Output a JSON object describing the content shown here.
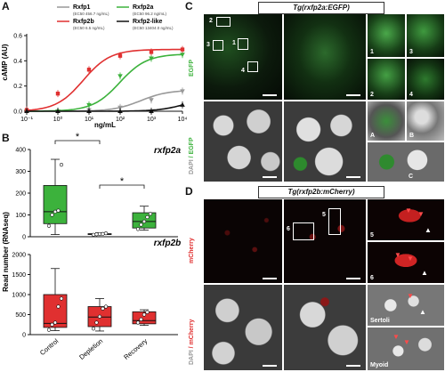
{
  "panels": {
    "A": "A",
    "B": "B",
    "C": "C",
    "D": "D"
  },
  "panelA": {
    "ylabel": "cAMP (AU)",
    "xlabel": "ng/mL",
    "legend": [
      {
        "name": "Rxfp1",
        "ec50": "(EC50 456.7 ng/mL)",
        "color": "#999999"
      },
      {
        "name": "Rxfp2a",
        "ec50": "(EC50 96.2 ng/mL)",
        "color": "#3cb23c"
      },
      {
        "name": "Rxfp2b",
        "ec50": "(EC50 6.5 ng/mL)",
        "color": "#e03030"
      },
      {
        "name": "Rxfp2-like",
        "ec50": "(EC50 13404.0 ng/mL)",
        "color": "#111111"
      }
    ]
  },
  "panelB": {
    "ylabel": "Read number (RNAseq)",
    "gene1": "rxfp2a",
    "gene2": "rxfp2b",
    "star": "*",
    "categories": [
      "Control",
      "Depletion",
      "Recovery"
    ]
  },
  "panelC": {
    "title": "Tg(rxfp2a:EGFP)",
    "row1_label": "EGFP",
    "row2_label_a": "DAPI",
    "row2_label_b": " / EGFP",
    "insets": [
      "1",
      "2",
      "3",
      "4"
    ],
    "boxes": [
      "2",
      "3",
      "1",
      "4"
    ],
    "sub": [
      "A",
      "B",
      "C"
    ]
  },
  "panelD": {
    "title": "Tg(rxfp2b:mCherry)",
    "row1_label": "mCherry",
    "row2_label_a": "DAPI",
    "row2_label_b": " / mCherry",
    "insets": [
      "5",
      "6"
    ],
    "boxes": [
      "6",
      "5"
    ],
    "cell_labels": [
      "Sertoli",
      "Myoid"
    ]
  },
  "chart_data": [
    {
      "type": "line",
      "title": "",
      "xlabel": "ng/mL",
      "ylabel": "cAMP (AU)",
      "xscale": "log",
      "xlim": [
        0.1,
        10000
      ],
      "ylim": [
        0,
        0.6
      ],
      "x_ticks": [
        "10⁻¹",
        "10⁰",
        "10¹",
        "10²",
        "10³",
        "10⁴"
      ],
      "y_ticks": [
        "0.0",
        "0.2",
        "0.4",
        "0.6"
      ],
      "legend_position": "top",
      "series": [
        {
          "name": "Rxfp1",
          "ec50": 456.7,
          "x": [
            0.1,
            1,
            10,
            100,
            1000,
            10000
          ],
          "y": [
            0.0,
            0.0,
            0.01,
            0.03,
            0.09,
            0.16
          ],
          "color": "#999999",
          "marker": "triangle-down"
        },
        {
          "name": "Rxfp2a",
          "ec50": 96.2,
          "x": [
            0.1,
            1,
            10,
            100,
            1000,
            10000
          ],
          "y": [
            0.0,
            0.0,
            0.05,
            0.28,
            0.42,
            0.45
          ],
          "color": "#3cb23c",
          "marker": "triangle-down"
        },
        {
          "name": "Rxfp2b",
          "ec50": 6.5,
          "x": [
            0.1,
            1,
            10,
            100,
            1000,
            10000
          ],
          "y": [
            0.01,
            0.14,
            0.33,
            0.44,
            0.47,
            0.49
          ],
          "color": "#e03030",
          "marker": "square"
        },
        {
          "name": "Rxfp2-like",
          "ec50": 13404.0,
          "x": [
            0.1,
            1,
            10,
            100,
            1000,
            10000
          ],
          "y": [
            0.0,
            0.0,
            0.0,
            0.0,
            0.0,
            0.05
          ],
          "color": "#111111",
          "marker": "triangle-up"
        }
      ]
    },
    {
      "type": "box",
      "title": "rxfp2a",
      "ylabel": "Read number (RNAseq)",
      "categories": [
        "Control",
        "Depletion",
        "Recovery"
      ],
      "ylim": [
        0,
        400
      ],
      "y_ticks": [
        "0",
        "100",
        "200",
        "300",
        "400"
      ],
      "color": "#3cb23c",
      "boxes": [
        {
          "min": 10,
          "q1": 60,
          "median": 115,
          "q3": 235,
          "max": 355,
          "points": [
            50,
            100,
            115,
            120,
            330
          ]
        },
        {
          "min": 8,
          "q1": 10,
          "median": 12,
          "q3": 14,
          "max": 18,
          "points": [
            9,
            11,
            12,
            13,
            16
          ]
        },
        {
          "min": 30,
          "q1": 40,
          "median": 70,
          "q3": 110,
          "max": 140,
          "points": [
            35,
            55,
            70,
            90,
            105
          ]
        }
      ],
      "annotations": [
        {
          "from": "Control",
          "to": "Depletion",
          "label": "*"
        },
        {
          "from": "Depletion",
          "to": "Recovery",
          "label": "*"
        }
      ]
    },
    {
      "type": "box",
      "title": "rxfp2b",
      "ylabel": "Read number (RNAseq)",
      "categories": [
        "Control",
        "Depletion",
        "Recovery"
      ],
      "ylim": [
        0,
        2000
      ],
      "y_ticks": [
        "0",
        "500",
        "1000",
        "1500",
        "2000"
      ],
      "color": "#e03030",
      "boxes": [
        {
          "min": 100,
          "q1": 180,
          "median": 280,
          "q3": 1000,
          "max": 1650,
          "points": [
            120,
            250,
            300,
            700,
            900
          ]
        },
        {
          "min": 90,
          "q1": 200,
          "median": 440,
          "q3": 700,
          "max": 900,
          "points": [
            150,
            300,
            450,
            650,
            700
          ]
        },
        {
          "min": 230,
          "q1": 270,
          "median": 350,
          "q3": 570,
          "max": 620,
          "points": [
            300,
            380,
            500,
            560
          ]
        }
      ]
    }
  ]
}
